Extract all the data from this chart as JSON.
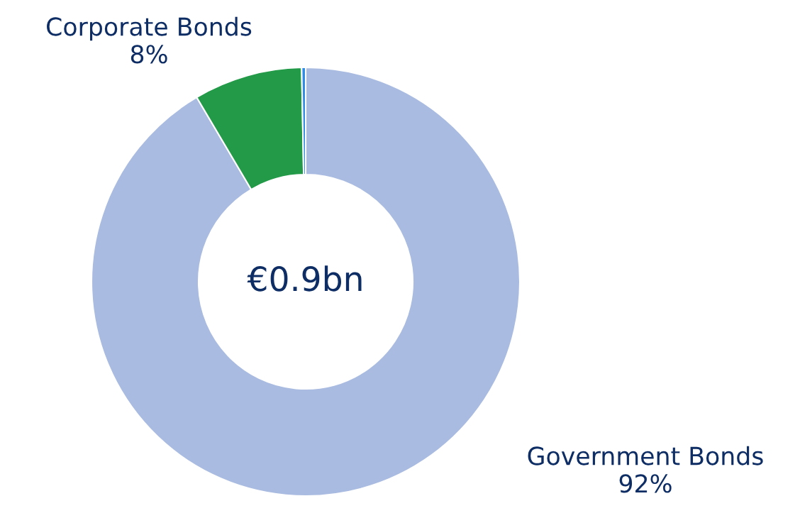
{
  "chart_data": {
    "type": "donut",
    "categories": [
      "Government Bonds",
      "Corporate Bonds",
      null
    ],
    "values": [
      91.5,
      8.2,
      0.3
    ],
    "value_labels": [
      "92%",
      "8%",
      null
    ],
    "colors": [
      "#a9bbe0",
      "#229a48",
      "#2e8be6"
    ],
    "annotations": [
      "€0.9bn"
    ]
  }
}
